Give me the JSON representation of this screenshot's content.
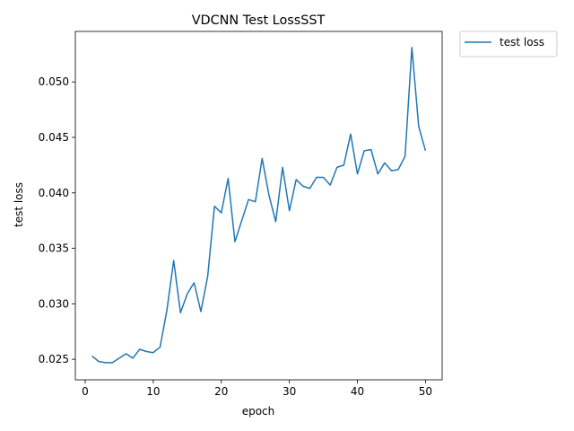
{
  "chart_data": {
    "type": "line",
    "title": "VDCNN Test LossSST",
    "xlabel": "epoch",
    "ylabel": "test loss",
    "xlim": [
      -1.45,
      52.45
    ],
    "ylim": [
      0.02315,
      0.05455
    ],
    "xticks": [
      0,
      10,
      20,
      30,
      40,
      50
    ],
    "xtick_labels": [
      "0",
      "10",
      "20",
      "30",
      "40",
      "50"
    ],
    "yticks": [
      0.025,
      0.03,
      0.035,
      0.04,
      0.045,
      0.05
    ],
    "ytick_labels": [
      "0.025",
      "0.030",
      "0.035",
      "0.040",
      "0.045",
      "0.050"
    ],
    "grid": false,
    "legend": {
      "placement": "outside-top-right",
      "entries": [
        "test loss"
      ]
    },
    "series": [
      {
        "name": "test loss",
        "color": "#1f77b4",
        "x": [
          1,
          2,
          3,
          4,
          5,
          6,
          7,
          8,
          9,
          10,
          11,
          12,
          13,
          14,
          15,
          16,
          17,
          18,
          19,
          20,
          21,
          22,
          23,
          24,
          25,
          26,
          27,
          28,
          29,
          30,
          31,
          32,
          33,
          34,
          35,
          36,
          37,
          38,
          39,
          40,
          41,
          42,
          43,
          44,
          45,
          46,
          47,
          48,
          49,
          50
        ],
        "values": [
          0.0253,
          0.0248,
          0.0247,
          0.0247,
          0.0251,
          0.0255,
          0.0251,
          0.0259,
          0.0257,
          0.0256,
          0.0261,
          0.0294,
          0.0339,
          0.0292,
          0.0309,
          0.0319,
          0.0293,
          0.0325,
          0.0388,
          0.0382,
          0.0413,
          0.0356,
          0.0375,
          0.0394,
          0.0392,
          0.0431,
          0.0398,
          0.0374,
          0.0423,
          0.0384,
          0.0412,
          0.0406,
          0.0404,
          0.0414,
          0.0414,
          0.0407,
          0.0423,
          0.0425,
          0.0453,
          0.0417,
          0.0438,
          0.0439,
          0.0417,
          0.0427,
          0.042,
          0.0421,
          0.0433,
          0.0531,
          0.046,
          0.0438
        ]
      }
    ]
  }
}
